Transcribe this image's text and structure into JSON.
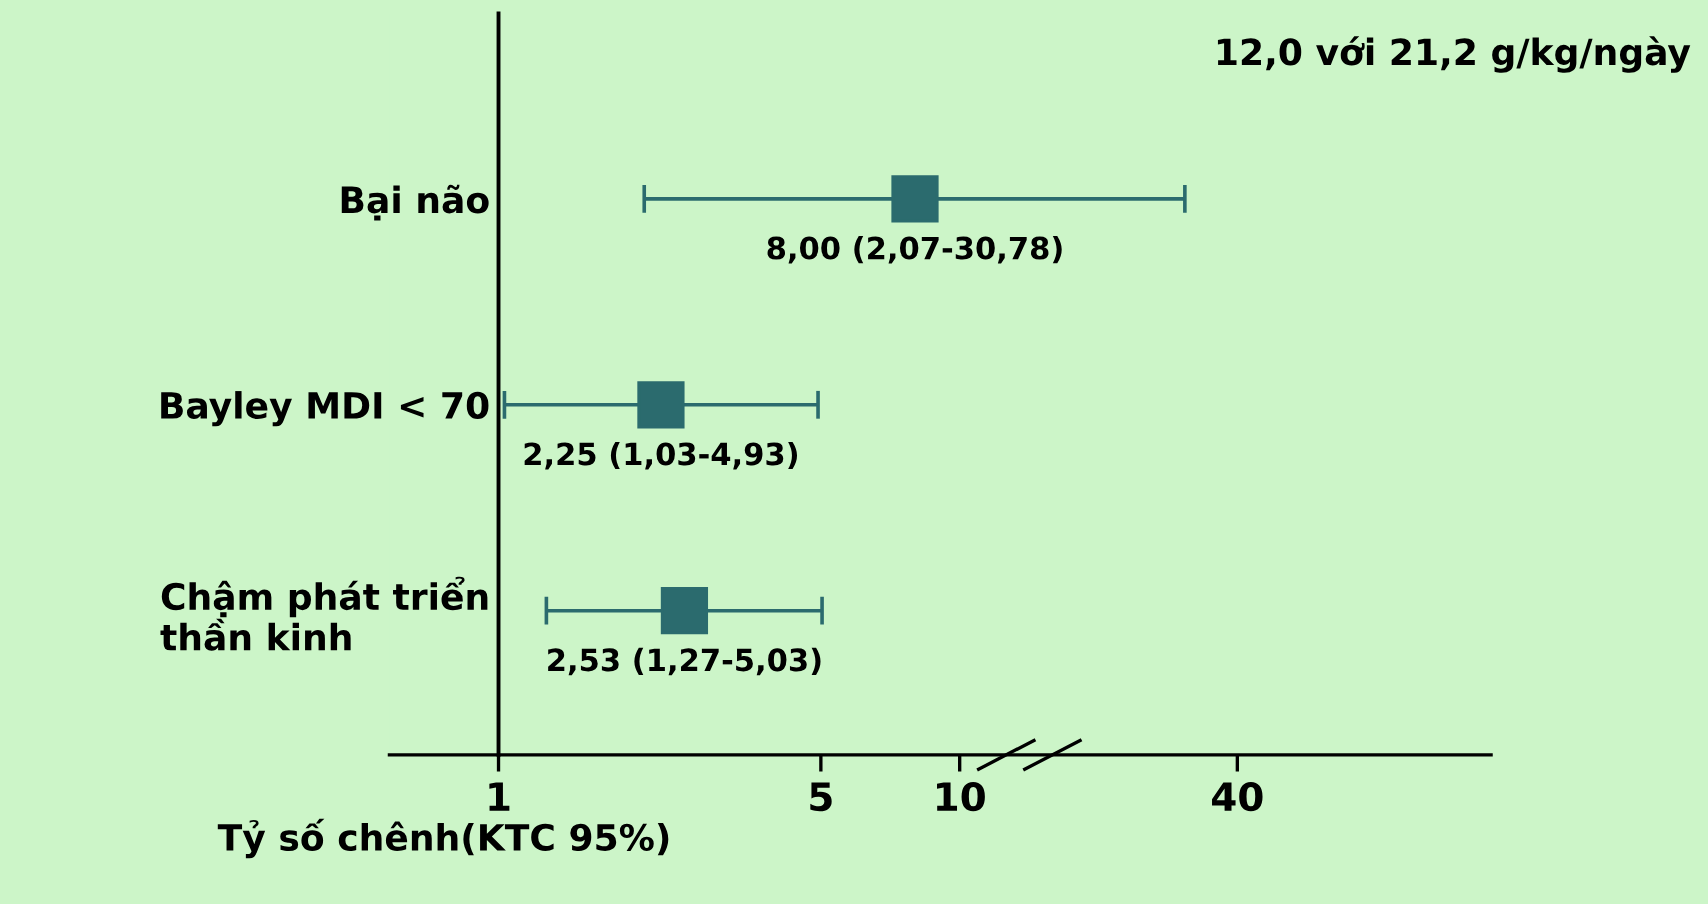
{
  "chart_data": {
    "type": "scatter",
    "orientation": "horizontal",
    "log": "x",
    "title": "12,0 với 21,2 g/kg/ngày",
    "xlabel": "Tỷ số chênh(KTC 95%)",
    "categories": [
      "Bại não",
      "Bayley MDI < 70",
      "Chậm phát triển\nthần kinh"
    ],
    "series": [
      {
        "color": "#2b6b6e",
        "values": [
          8.0,
          2.25,
          2.53
        ],
        "errors": [
          [
            2.07,
            30.78
          ],
          [
            1.03,
            4.93
          ],
          [
            1.27,
            5.03
          ]
        ],
        "value_labels": [
          "8,00 (2,07-30,78)",
          "2,25 (1,03-4,93)",
          "2,53 (1,27-5,03)"
        ]
      }
    ],
    "xlim": [
      0.58,
      142
    ],
    "xticks": [
      1,
      5,
      10,
      40
    ],
    "marker": "square",
    "grid": false,
    "legend": false
  }
}
